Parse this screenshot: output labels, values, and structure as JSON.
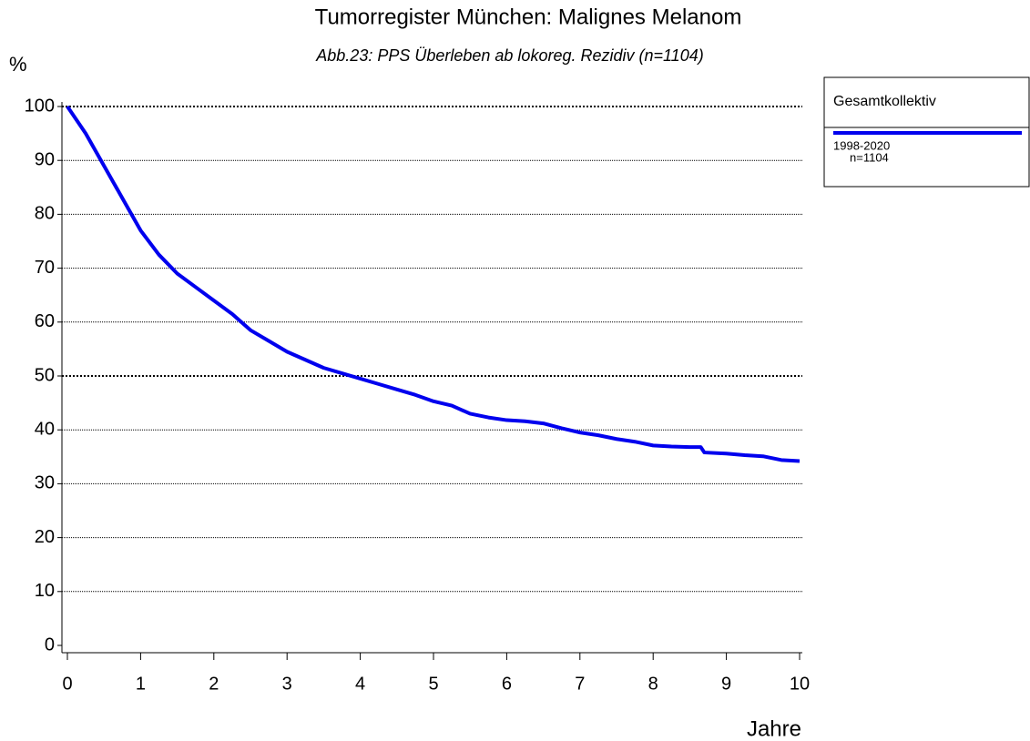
{
  "chart_data": {
    "type": "line",
    "title": "Tumorregister München: Malignes Melanom",
    "subtitle": "Abb.23: PPS  Überleben ab lokoreg. Rezidiv (n=1104)",
    "y_label": "%",
    "x_label": "Jahre",
    "legend_title": "Gesamtkollektiv",
    "x": [
      0,
      0.25,
      0.5,
      0.75,
      1,
      1.25,
      1.5,
      1.75,
      2,
      2.25,
      2.5,
      2.75,
      3,
      3.25,
      3.5,
      3.75,
      4,
      4.25,
      4.5,
      4.75,
      5,
      5.25,
      5.5,
      5.75,
      6,
      6.25,
      6.5,
      6.75,
      7,
      7.25,
      7.5,
      7.75,
      8,
      8.25,
      8.5,
      8.65,
      8.7,
      9,
      9.25,
      9.5,
      9.75,
      10
    ],
    "series": [
      {
        "name": "1998-2020",
        "note": "n=1104",
        "color": "#0000ee",
        "values": [
          100,
          95,
          89,
          83,
          77,
          72.5,
          69,
          66.5,
          64,
          61.5,
          58.5,
          56.5,
          54.5,
          53,
          51.5,
          50.5,
          49.5,
          48.5,
          47.5,
          46.5,
          45.3,
          44.5,
          43,
          42.3,
          41.8,
          41.6,
          41.2,
          40.3,
          39.5,
          39,
          38.3,
          37.8,
          37.1,
          36.9,
          36.8,
          36.8,
          35.8,
          35.6,
          35.3,
          35.1,
          34.4,
          34.2
        ]
      }
    ],
    "xlim": [
      0,
      10
    ],
    "xticks": [
      0,
      1,
      2,
      3,
      4,
      5,
      6,
      7,
      8,
      9,
      10
    ],
    "ylim": [
      0,
      100
    ],
    "yticks": [
      0,
      10,
      20,
      30,
      40,
      50,
      60,
      70,
      80,
      90,
      100
    ],
    "grid": true,
    "emphasized_yticks": [
      50,
      100
    ]
  }
}
